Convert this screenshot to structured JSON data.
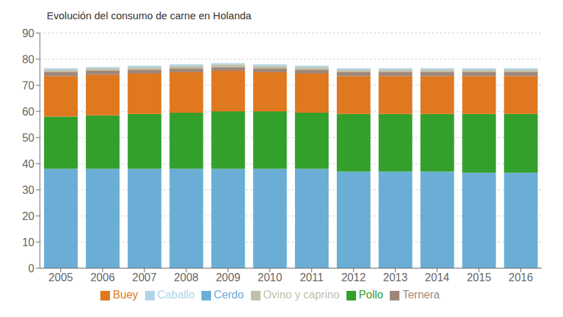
{
  "chart_data": {
    "type": "bar",
    "title": "Evolución del consumo de carne en Holanda",
    "categories": [
      "2005",
      "2006",
      "2007",
      "2008",
      "2009",
      "2010",
      "2011",
      "2012",
      "2013",
      "2014",
      "2015",
      "2016"
    ],
    "series": [
      {
        "name": "Cerdo",
        "color": "#6AAED6",
        "values": [
          38.0,
          38.0,
          38.0,
          38.0,
          38.0,
          38.0,
          38.0,
          37.0,
          37.0,
          37.0,
          36.5,
          36.5
        ]
      },
      {
        "name": "Pollo",
        "color": "#33A02C",
        "values": [
          20.0,
          20.5,
          21.0,
          21.5,
          22.0,
          22.0,
          21.5,
          22.0,
          22.0,
          22.0,
          22.5,
          22.5
        ]
      },
      {
        "name": "Buey",
        "color": "#E07820",
        "values": [
          15.5,
          15.5,
          15.5,
          15.5,
          15.5,
          15.0,
          15.0,
          14.5,
          14.5,
          14.5,
          14.5,
          14.5
        ]
      },
      {
        "name": "Ternera",
        "color": "#A08878",
        "values": [
          1.5,
          1.5,
          1.5,
          1.5,
          1.5,
          1.5,
          1.5,
          1.5,
          1.5,
          1.5,
          1.5,
          1.5
        ]
      },
      {
        "name": "Ovino y caprino",
        "color": "#C0C0AA",
        "values": [
          1.0,
          1.0,
          1.0,
          1.0,
          1.0,
          1.0,
          1.0,
          1.0,
          1.0,
          1.0,
          1.0,
          1.0
        ]
      },
      {
        "name": "Caballo",
        "color": "#AED6E8",
        "values": [
          0.5,
          0.5,
          0.5,
          0.5,
          0.5,
          0.5,
          0.5,
          0.5,
          0.5,
          0.5,
          0.5,
          0.5
        ]
      }
    ],
    "ylim": [
      0,
      90
    ],
    "yticks": [
      0,
      10,
      20,
      30,
      40,
      50,
      60,
      70,
      80,
      90
    ],
    "grid": true,
    "stacked": true,
    "legend": "bottom"
  }
}
